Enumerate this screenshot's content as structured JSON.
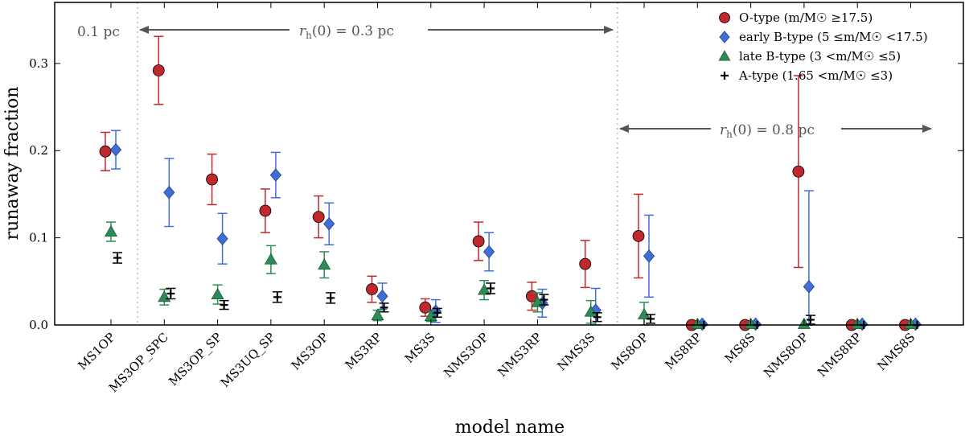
{
  "chart_data": {
    "type": "scatter",
    "xlabel": "model name",
    "ylabel": "runaway fraction",
    "ylim": [
      0,
      0.37
    ],
    "yticks": [
      0.0,
      0.1,
      0.2,
      0.3
    ],
    "ytick_labels": [
      "0.0",
      "0.1",
      "0.2",
      "0.3"
    ],
    "grid": false,
    "legend_position": "top-right",
    "categories": [
      "MS1OP",
      "MS3OP_SPC",
      "MS3OP_SP",
      "MS3UQ_SP",
      "MS3OP",
      "MS3RP",
      "MS3S",
      "NMS3OP",
      "NMS3RP",
      "NMS3S",
      "MS8OP",
      "MS8RP",
      "MS8S",
      "NMS8OP",
      "NMS8RP",
      "NMS8S"
    ],
    "series": [
      {
        "name": "O-type (m/M☉ ≥17.5)",
        "marker": "circle",
        "color": "#c0282d",
        "values": [
          0.199,
          0.292,
          0.167,
          0.131,
          0.124,
          0.041,
          0.02,
          0.096,
          0.033,
          0.07,
          0.102,
          0.0,
          0.0,
          0.176,
          0.0,
          0.0
        ],
        "err_low": [
          0.022,
          0.039,
          0.029,
          0.025,
          0.024,
          0.015,
          0.01,
          0.022,
          0.016,
          0.027,
          0.048,
          0.0,
          0.0,
          0.11,
          0.0,
          0.0
        ],
        "err_high": [
          0.022,
          0.039,
          0.029,
          0.025,
          0.024,
          0.015,
          0.01,
          0.022,
          0.016,
          0.027,
          0.048,
          0.0,
          0.0,
          0.11,
          0.0,
          0.0
        ]
      },
      {
        "name": "early B-type (5 ≤m/M☉ <17.5)",
        "marker": "diamond",
        "color": "#3f6fd6",
        "values": [
          0.201,
          0.152,
          0.099,
          0.172,
          0.116,
          0.033,
          0.016,
          0.084,
          0.025,
          0.017,
          0.079,
          0.001,
          0.001,
          0.044,
          0.001,
          0.001
        ],
        "err_low": [
          0.022,
          0.039,
          0.029,
          0.026,
          0.024,
          0.015,
          0.013,
          0.022,
          0.016,
          0.025,
          0.047,
          0.0,
          0.0,
          0.11,
          0.0,
          0.0
        ],
        "err_high": [
          0.022,
          0.039,
          0.029,
          0.026,
          0.024,
          0.015,
          0.013,
          0.022,
          0.016,
          0.025,
          0.047,
          0.0,
          0.0,
          0.11,
          0.0,
          0.0
        ]
      },
      {
        "name": "late B-type (3 <m/M☉ ≤5)",
        "marker": "triangle",
        "color": "#2e8b57",
        "values": [
          0.107,
          0.032,
          0.035,
          0.075,
          0.069,
          0.011,
          0.01,
          0.04,
          0.026,
          0.015,
          0.012,
          0.001,
          0.001,
          0.001,
          0.001,
          0.001
        ],
        "err_low": [
          0.011,
          0.009,
          0.011,
          0.016,
          0.015,
          0.006,
          0.006,
          0.011,
          0.011,
          0.013,
          0.014,
          0.0,
          0.0,
          0.0,
          0.0,
          0.0
        ],
        "err_high": [
          0.011,
          0.009,
          0.011,
          0.016,
          0.015,
          0.006,
          0.006,
          0.011,
          0.011,
          0.013,
          0.014,
          0.0,
          0.0,
          0.0,
          0.0,
          0.0
        ]
      },
      {
        "name": "A-type (1.65 <m/M☉ ≤3)",
        "marker": "plus",
        "color": "#000000",
        "values": [
          0.077,
          0.036,
          0.023,
          0.032,
          0.031,
          0.02,
          0.014,
          0.042,
          0.029,
          0.009,
          0.007,
          0.0,
          0.0,
          0.006,
          0.0,
          0.0
        ],
        "err_low": [
          0.006,
          0.006,
          0.005,
          0.006,
          0.006,
          0.005,
          0.005,
          0.006,
          0.006,
          0.005,
          0.005,
          0.0,
          0.0,
          0.005,
          0.0,
          0.0
        ],
        "err_high": [
          0.006,
          0.006,
          0.005,
          0.006,
          0.006,
          0.005,
          0.005,
          0.006,
          0.006,
          0.005,
          0.005,
          0.0,
          0.0,
          0.005,
          0.0,
          0.0
        ]
      }
    ],
    "annotations": [
      {
        "text": "0.1 pc"
      },
      {
        "text": "r_h(0) = 0.3 pc"
      },
      {
        "text": "r_h(0) = 0.8 pc"
      }
    ],
    "region_dividers_after_category": [
      "MS1OP",
      "NMS3S"
    ]
  }
}
